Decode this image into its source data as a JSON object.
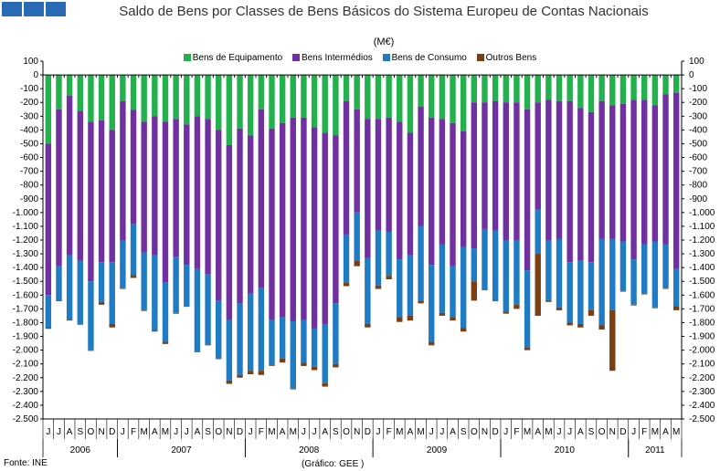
{
  "chart_data": {
    "type": "bar",
    "stacked": true,
    "title": "Saldo de Bens por Classes de Bens Básicos do Sistema Europeu de Contas Nacionais",
    "unit": "(M€)",
    "ylim": [
      -2500,
      100
    ],
    "yticks": [
      100,
      0,
      -100,
      -200,
      -300,
      -400,
      -500,
      -600,
      -700,
      -800,
      -900,
      -1000,
      -1100,
      -1200,
      -1300,
      -1400,
      -1500,
      -1600,
      -1700,
      -1800,
      -1900,
      -2000,
      -2100,
      -2200,
      -2300,
      -2400,
      -2500
    ],
    "ytick_labels": [
      "100",
      "0",
      "-100",
      "-200",
      "-300",
      "-400",
      "-500",
      "-600",
      "-700",
      "-800",
      "-900",
      "-1.000",
      "-1.100",
      "-1.200",
      "-1.300",
      "-1.400",
      "-1.500",
      "-1.600",
      "-1.700",
      "-1.800",
      "-1.900",
      "-2.000",
      "-2.100",
      "-2.200",
      "-2.300",
      "-2.400",
      "-2.500"
    ],
    "grid": false,
    "legend_position": "top",
    "month_labels": [
      "J",
      "J",
      "A",
      "S",
      "O",
      "N",
      "D",
      "J",
      "F",
      "M",
      "A",
      "M",
      "J",
      "J",
      "A",
      "S",
      "O",
      "N",
      "D",
      "J",
      "F",
      "M",
      "A",
      "M",
      "J",
      "J",
      "A",
      "S",
      "O",
      "N",
      "D",
      "J",
      "F",
      "M",
      "A",
      "M",
      "J",
      "J",
      "A",
      "S",
      "O",
      "N",
      "D",
      "J",
      "F",
      "M",
      "A",
      "M",
      "J",
      "J",
      "A",
      "S",
      "O",
      "N",
      "D",
      "J",
      "F",
      "M",
      "A",
      "M"
    ],
    "years": [
      {
        "label": "2006",
        "count": 7
      },
      {
        "label": "2007",
        "count": 12
      },
      {
        "label": "2008",
        "count": 12
      },
      {
        "label": "2009",
        "count": 12
      },
      {
        "label": "2010",
        "count": 12
      },
      {
        "label": "2011",
        "count": 5
      }
    ],
    "series": [
      {
        "name": "Bens de Equipamento",
        "color": "#22b14c",
        "values": [
          -500,
          -250,
          -150,
          -260,
          -340,
          -330,
          -400,
          -190,
          -255,
          -340,
          -300,
          -340,
          -320,
          -360,
          -300,
          -320,
          -400,
          -510,
          -390,
          -440,
          -250,
          -390,
          -350,
          -310,
          -310,
          -380,
          -420,
          -440,
          -190,
          -250,
          -320,
          -320,
          -310,
          -340,
          -420,
          -230,
          -310,
          -320,
          -350,
          -410,
          -200,
          -200,
          -190,
          -200,
          -200,
          -250,
          -200,
          -180,
          -190,
          -190,
          -240,
          -270,
          -190,
          -220,
          -210,
          -180,
          -180,
          -220,
          -140,
          -130
        ]
      },
      {
        "name": "Bens Intermédios",
        "color": "#7030a0",
        "values": [
          -1100,
          -1140,
          -1160,
          -1090,
          -1160,
          -1030,
          -960,
          -1010,
          -830,
          -950,
          -1010,
          -1170,
          -1000,
          -1020,
          -1110,
          -1130,
          -1240,
          -1270,
          -1270,
          -1150,
          -1300,
          -1390,
          -1410,
          -1480,
          -1470,
          -1460,
          -1390,
          -1220,
          -970,
          -750,
          -1010,
          -810,
          -830,
          -1000,
          -890,
          -870,
          -1070,
          -910,
          -1040,
          -840,
          -1060,
          -920,
          -940,
          -1000,
          -1000,
          -1170,
          -780,
          -1020,
          -1000,
          -1170,
          -1110,
          -1090,
          -1000,
          -970,
          -1000,
          -1160,
          -1050,
          -990,
          -1090,
          -1280
        ]
      },
      {
        "name": "Bens de Consumo",
        "color": "#1f7bc4",
        "values": [
          -240,
          -250,
          -470,
          -460,
          -500,
          -290,
          -450,
          -350,
          -370,
          -420,
          -550,
          -430,
          -410,
          -300,
          -600,
          -510,
          -420,
          -440,
          -520,
          -560,
          -600,
          -330,
          -300,
          -490,
          -310,
          -280,
          -430,
          -440,
          -350,
          -350,
          -480,
          -400,
          -320,
          -420,
          -440,
          -540,
          -560,
          -500,
          -370,
          -590,
          -240,
          -440,
          -510,
          -520,
          -470,
          -560,
          -320,
          -440,
          -500,
          -440,
          -460,
          -350,
          -630,
          -520,
          -360,
          -330,
          -360,
          -480,
          -320,
          -270
        ]
      },
      {
        "name": "Outros Bens",
        "color": "#7a4012",
        "values": [
          -5,
          -5,
          -5,
          -5,
          -5,
          -20,
          -25,
          -5,
          -20,
          -5,
          -5,
          -15,
          -5,
          -5,
          -5,
          -5,
          -5,
          -25,
          -20,
          -25,
          -30,
          -5,
          -30,
          -5,
          -25,
          -25,
          -25,
          -25,
          -25,
          -40,
          -25,
          -25,
          -25,
          -35,
          -35,
          -20,
          -25,
          -20,
          -25,
          -25,
          -140,
          -5,
          -5,
          -15,
          -30,
          -20,
          -450,
          -10,
          -20,
          -20,
          -25,
          -40,
          -30,
          -440,
          -5,
          -5,
          -5,
          -5,
          -5,
          -30
        ]
      }
    ]
  },
  "source": "Fonte: INE",
  "credit": "(Gráfico: GEE )"
}
